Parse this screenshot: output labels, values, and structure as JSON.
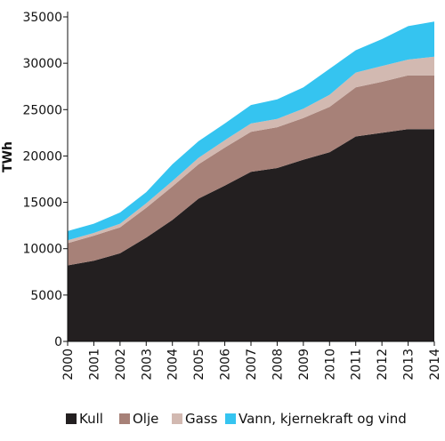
{
  "chart_data": {
    "type": "area",
    "stacked": true,
    "title": "",
    "xlabel": "",
    "ylabel": "TWh",
    "x": [
      "2000",
      "2001",
      "2002",
      "2003",
      "2004",
      "2005",
      "2006",
      "2007",
      "2008",
      "2009",
      "2010",
      "2011",
      "2012",
      "2013",
      "2014"
    ],
    "ylim": [
      0,
      35000
    ],
    "yticks": [
      0,
      5000,
      10000,
      15000,
      20000,
      25000,
      30000,
      35000
    ],
    "grid": false,
    "legend_position": "bottom",
    "series": [
      {
        "name": "Kull",
        "color": "#231f20",
        "values": [
          8200,
          8700,
          9500,
          11200,
          13100,
          15400,
          16800,
          18300,
          18700,
          19600,
          20400,
          22100,
          22500,
          22900,
          22900
        ]
      },
      {
        "name": "Olje",
        "color": "#a78178",
        "values": [
          2400,
          2700,
          2800,
          3200,
          3600,
          3700,
          4100,
          4300,
          4400,
          4500,
          4900,
          5300,
          5500,
          5800,
          5800
        ]
      },
      {
        "name": "Gass",
        "color": "#d2b9b1",
        "values": [
          300,
          300,
          400,
          500,
          600,
          700,
          800,
          900,
          900,
          1000,
          1300,
          1600,
          1700,
          1700,
          2000
        ]
      },
      {
        "name": "Vann, kjernekraft og vind",
        "color": "#35c4f0",
        "values": [
          1000,
          1000,
          1200,
          1200,
          1800,
          1800,
          1800,
          2000,
          2100,
          2300,
          2800,
          2400,
          2900,
          3600,
          3800
        ]
      }
    ]
  }
}
